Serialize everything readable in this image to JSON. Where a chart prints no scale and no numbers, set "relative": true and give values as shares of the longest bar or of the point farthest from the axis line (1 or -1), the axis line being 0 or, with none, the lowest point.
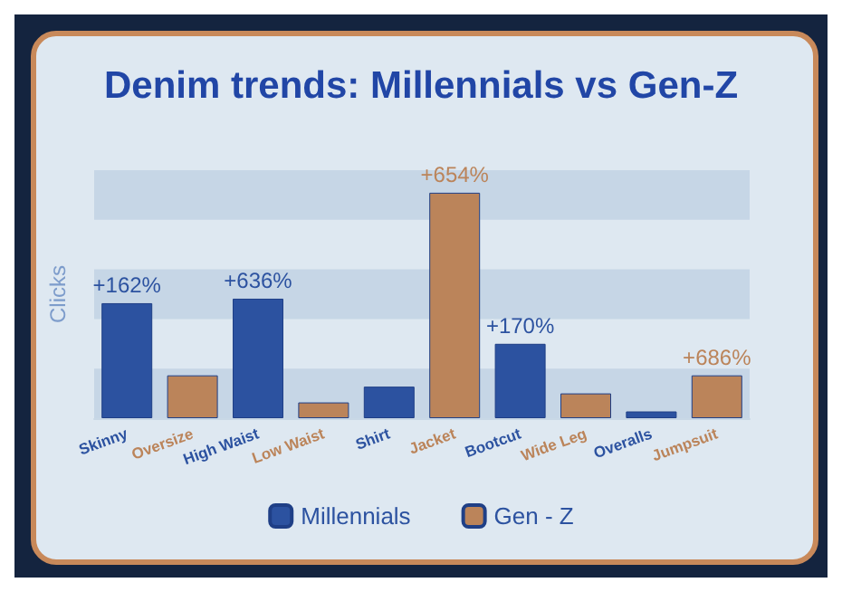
{
  "chart_data": {
    "type": "bar",
    "title": "Denim trends: Millennials vs Gen-Z",
    "ylabel": "Clicks",
    "relative": true,
    "legend": "bottom",
    "categories": [
      "Skinny",
      "Oversize",
      "High Waist",
      "Low Waist",
      "Shirt",
      "Jacket",
      "Bootcut",
      "Wide Leg",
      "Overalls",
      "Jumpsuit"
    ],
    "series": [
      {
        "name": "Millennials",
        "color": "#2c52a0",
        "values": [
          0.51,
          null,
          0.53,
          null,
          0.14,
          null,
          0.33,
          null,
          0.03,
          null
        ]
      },
      {
        "name": "Gen - Z",
        "color": "#bb845a",
        "values": [
          null,
          0.19,
          null,
          0.07,
          null,
          1,
          null,
          0.11,
          null,
          0.19
        ]
      }
    ],
    "bands": [
      {
        "axis": "y",
        "from": 0,
        "to": 0.22,
        "color": "#c6d6e6"
      },
      {
        "axis": "y",
        "from": 0.44,
        "to": 0.66,
        "color": "#c6d6e6"
      },
      {
        "axis": "y",
        "from": 0.88,
        "to": 1.1,
        "color": "#c6d6e6"
      }
    ],
    "annotations": [
      {
        "text": "+162%",
        "x": "Skinny",
        "y": 0.51
      },
      {
        "text": "+636%",
        "x": "High Waist",
        "y": 0.53
      },
      {
        "text": "+654%",
        "x": "Jacket",
        "y": 1
      },
      {
        "text": "+170%",
        "x": "Bootcut",
        "y": 0.33
      },
      {
        "text": "+686%",
        "x": "Jumpsuit",
        "y": 0.19
      }
    ]
  }
}
